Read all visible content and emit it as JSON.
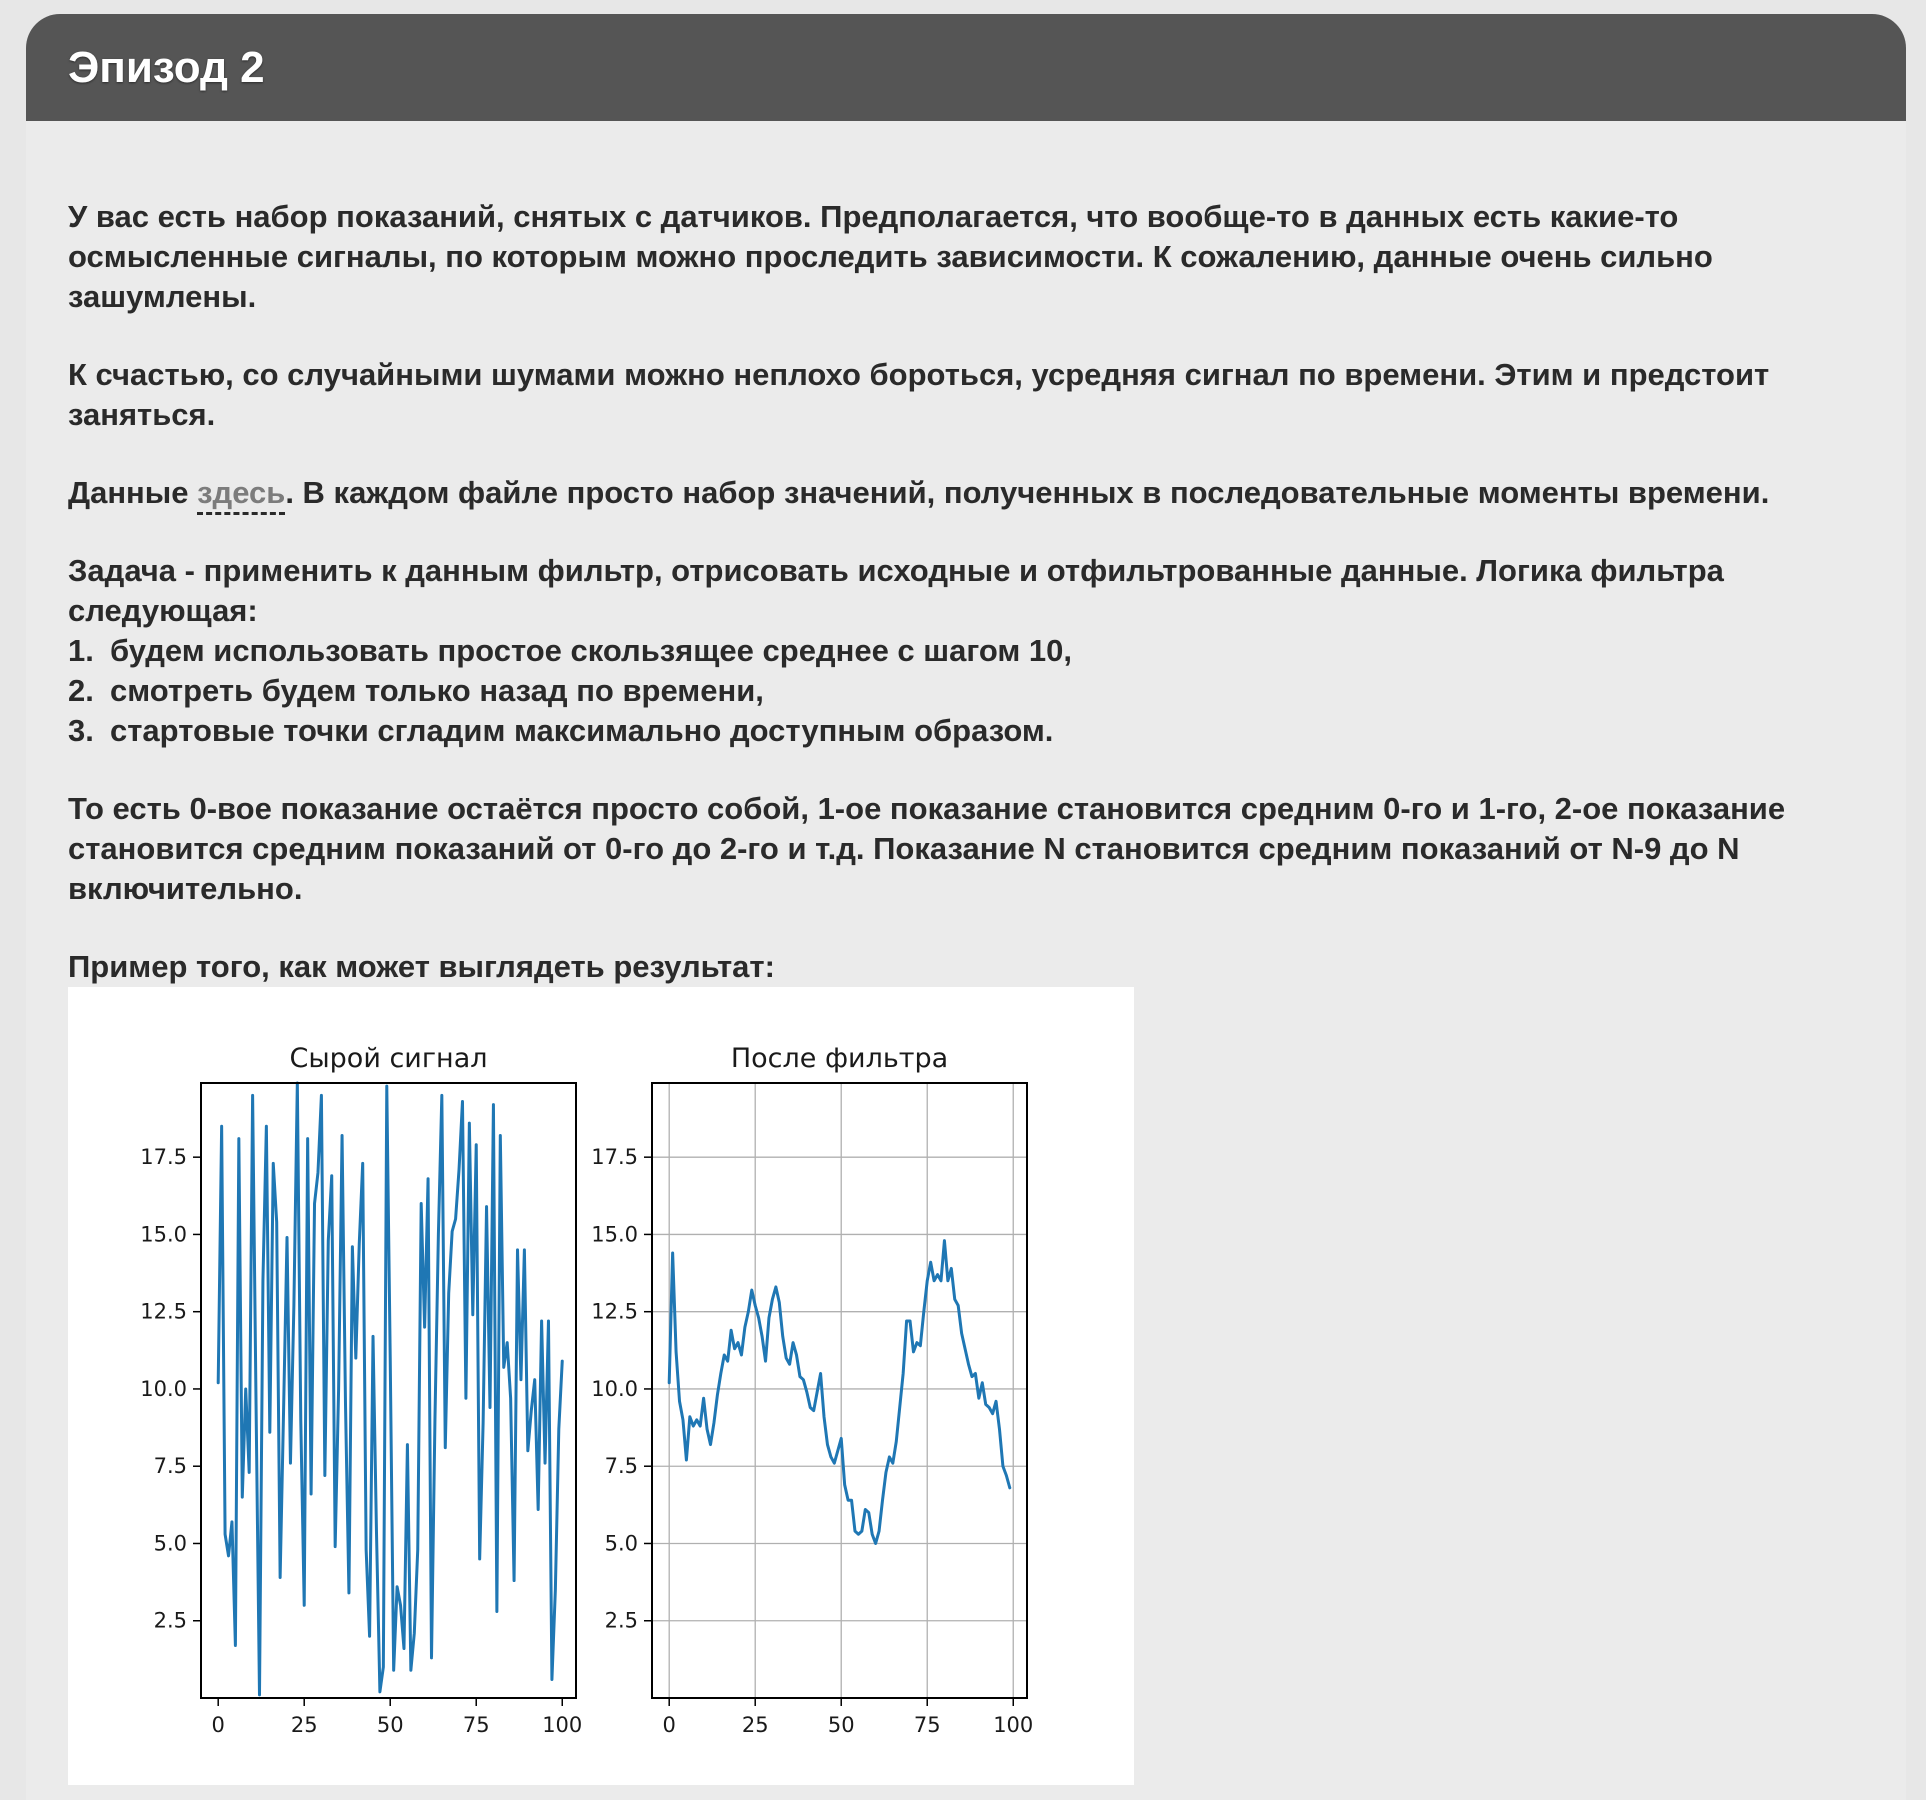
{
  "header": {
    "title": "Эпизод 2"
  },
  "content": {
    "para1": "У вас есть набор показаний, снятых с датчиков. Предполагается, что вообще-то в данных есть какие-то осмысленные сигналы, по которым можно проследить зависимости. К сожалению, данные очень сильно зашумлены.",
    "para2": "К счастью, со случайными шумами можно неплохо бороться, усредняя сигнал по времени. Этим и предстоит заняться.",
    "para3_prefix": "Данные ",
    "para3_link": "здесь",
    "para3_suffix": ". В каждом файле просто набор значений, полученных в последовательные моменты времени.",
    "task_intro": "Задача - применить к данным фильтр, отрисовать исходные и отфильтрованные данные. Логика фильтра следующая:",
    "steps": [
      {
        "num": "1.",
        "text": "будем использовать простое скользящее среднее с шагом 10,"
      },
      {
        "num": "2.",
        "text": "смотреть будем только назад по времени,"
      },
      {
        "num": "3.",
        "text": "стартовые точки сгладим максимально доступным образом."
      }
    ],
    "para5": "То есть 0-вое показание остаётся просто собой, 1-ое показание становится средним 0-го и 1-го, 2-ое показание становится средним показаний от 0-го до 2-го и т.д. Показание N становится средним показаний от N-9 до N включительно.",
    "example_label": "Пример того, как может выглядеть результат:"
  },
  "chart_data": [
    {
      "type": "line",
      "title": "Сырой сигнал",
      "color": "#1f77b4",
      "grid": false,
      "xlim": [
        -5,
        104
      ],
      "ylim": [
        0,
        19.9
      ],
      "x_ticks": [
        0,
        25,
        50,
        75,
        100
      ],
      "y_ticks": [
        2.5,
        5.0,
        7.5,
        10.0,
        12.5,
        15.0,
        17.5
      ],
      "y_tick_labels": [
        "2.5",
        "5.0",
        "7.5",
        "10.0",
        "12.5",
        "15.0",
        "17.5"
      ],
      "y": [
        10.2,
        18.5,
        5.3,
        4.6,
        5.7,
        1.7,
        18.1,
        6.5,
        10.0,
        7.3,
        19.5,
        9.5,
        0.1,
        13.5,
        18.5,
        8.6,
        17.3,
        15.4,
        3.9,
        9.3,
        14.9,
        7.6,
        12.7,
        19.9,
        9.0,
        3.0,
        18.1,
        6.6,
        16.0,
        17.0,
        19.5,
        7.2,
        14.8,
        16.9,
        4.9,
        10.0,
        18.2,
        9.5,
        3.4,
        14.6,
        11.0,
        14.7,
        17.3,
        4.8,
        2.0,
        11.7,
        5.4,
        0.2,
        1.0,
        19.8,
        11.0,
        0.9,
        3.6,
        3.0,
        1.6,
        8.2,
        0.9,
        2.1,
        4.8,
        16.0,
        12.0,
        16.8,
        1.3,
        9.0,
        15.0,
        19.5,
        8.1,
        13.1,
        15.1,
        15.5,
        17.1,
        19.3,
        9.7,
        18.6,
        12.4,
        17.9,
        4.5,
        8.9,
        15.9,
        9.4,
        19.2,
        2.8,
        18.2,
        10.7,
        11.5,
        9.7,
        3.8,
        14.5,
        10.3,
        14.5,
        8.0,
        9.3,
        10.3,
        6.1,
        12.2,
        7.6,
        12.2,
        0.6,
        3.5,
        8.7,
        10.9
      ]
    },
    {
      "type": "line",
      "title": "После фильтра",
      "color": "#1f77b4",
      "grid": true,
      "xlim": [
        -5,
        104
      ],
      "ylim": [
        0,
        19.9
      ],
      "x_ticks": [
        0,
        25,
        50,
        75,
        100
      ],
      "y_ticks": [
        2.5,
        5.0,
        7.5,
        10.0,
        12.5,
        15.0,
        17.5
      ],
      "y_tick_labels": [
        "2.5",
        "5.0",
        "7.5",
        "10.0",
        "12.5",
        "15.0",
        "17.5"
      ],
      "y": [
        10.2,
        14.4,
        11.2,
        9.6,
        9.0,
        7.7,
        9.1,
        8.8,
        9.0,
        8.8,
        9.7,
        8.7,
        8.2,
        8.9,
        9.8,
        10.5,
        11.1,
        10.9,
        11.9,
        11.3,
        11.5,
        11.1,
        12.0,
        12.5,
        13.2,
        12.7,
        12.3,
        11.7,
        10.9,
        12.3,
        12.9,
        13.3,
        12.8,
        11.7,
        11.0,
        10.8,
        11.5,
        11.1,
        10.4,
        10.3,
        9.9,
        9.4,
        9.3,
        9.9,
        10.5,
        9.1,
        8.2,
        7.8,
        7.6,
        8.0,
        8.4,
        6.9,
        6.4,
        6.4,
        5.4,
        5.3,
        5.4,
        6.1,
        6.0,
        5.3,
        5.0,
        5.4,
        6.4,
        7.3,
        7.8,
        7.6,
        8.3,
        9.4,
        10.5,
        12.2,
        12.2,
        11.2,
        11.5,
        11.4,
        12.5,
        13.5,
        14.1,
        13.5,
        13.7,
        13.5,
        14.8,
        13.5,
        13.9,
        12.9,
        12.7,
        11.8,
        11.3,
        10.8,
        10.4,
        10.5,
        9.7,
        10.2,
        9.5,
        9.4,
        9.2,
        9.6,
        8.7,
        7.5,
        7.2,
        6.8
      ]
    }
  ]
}
